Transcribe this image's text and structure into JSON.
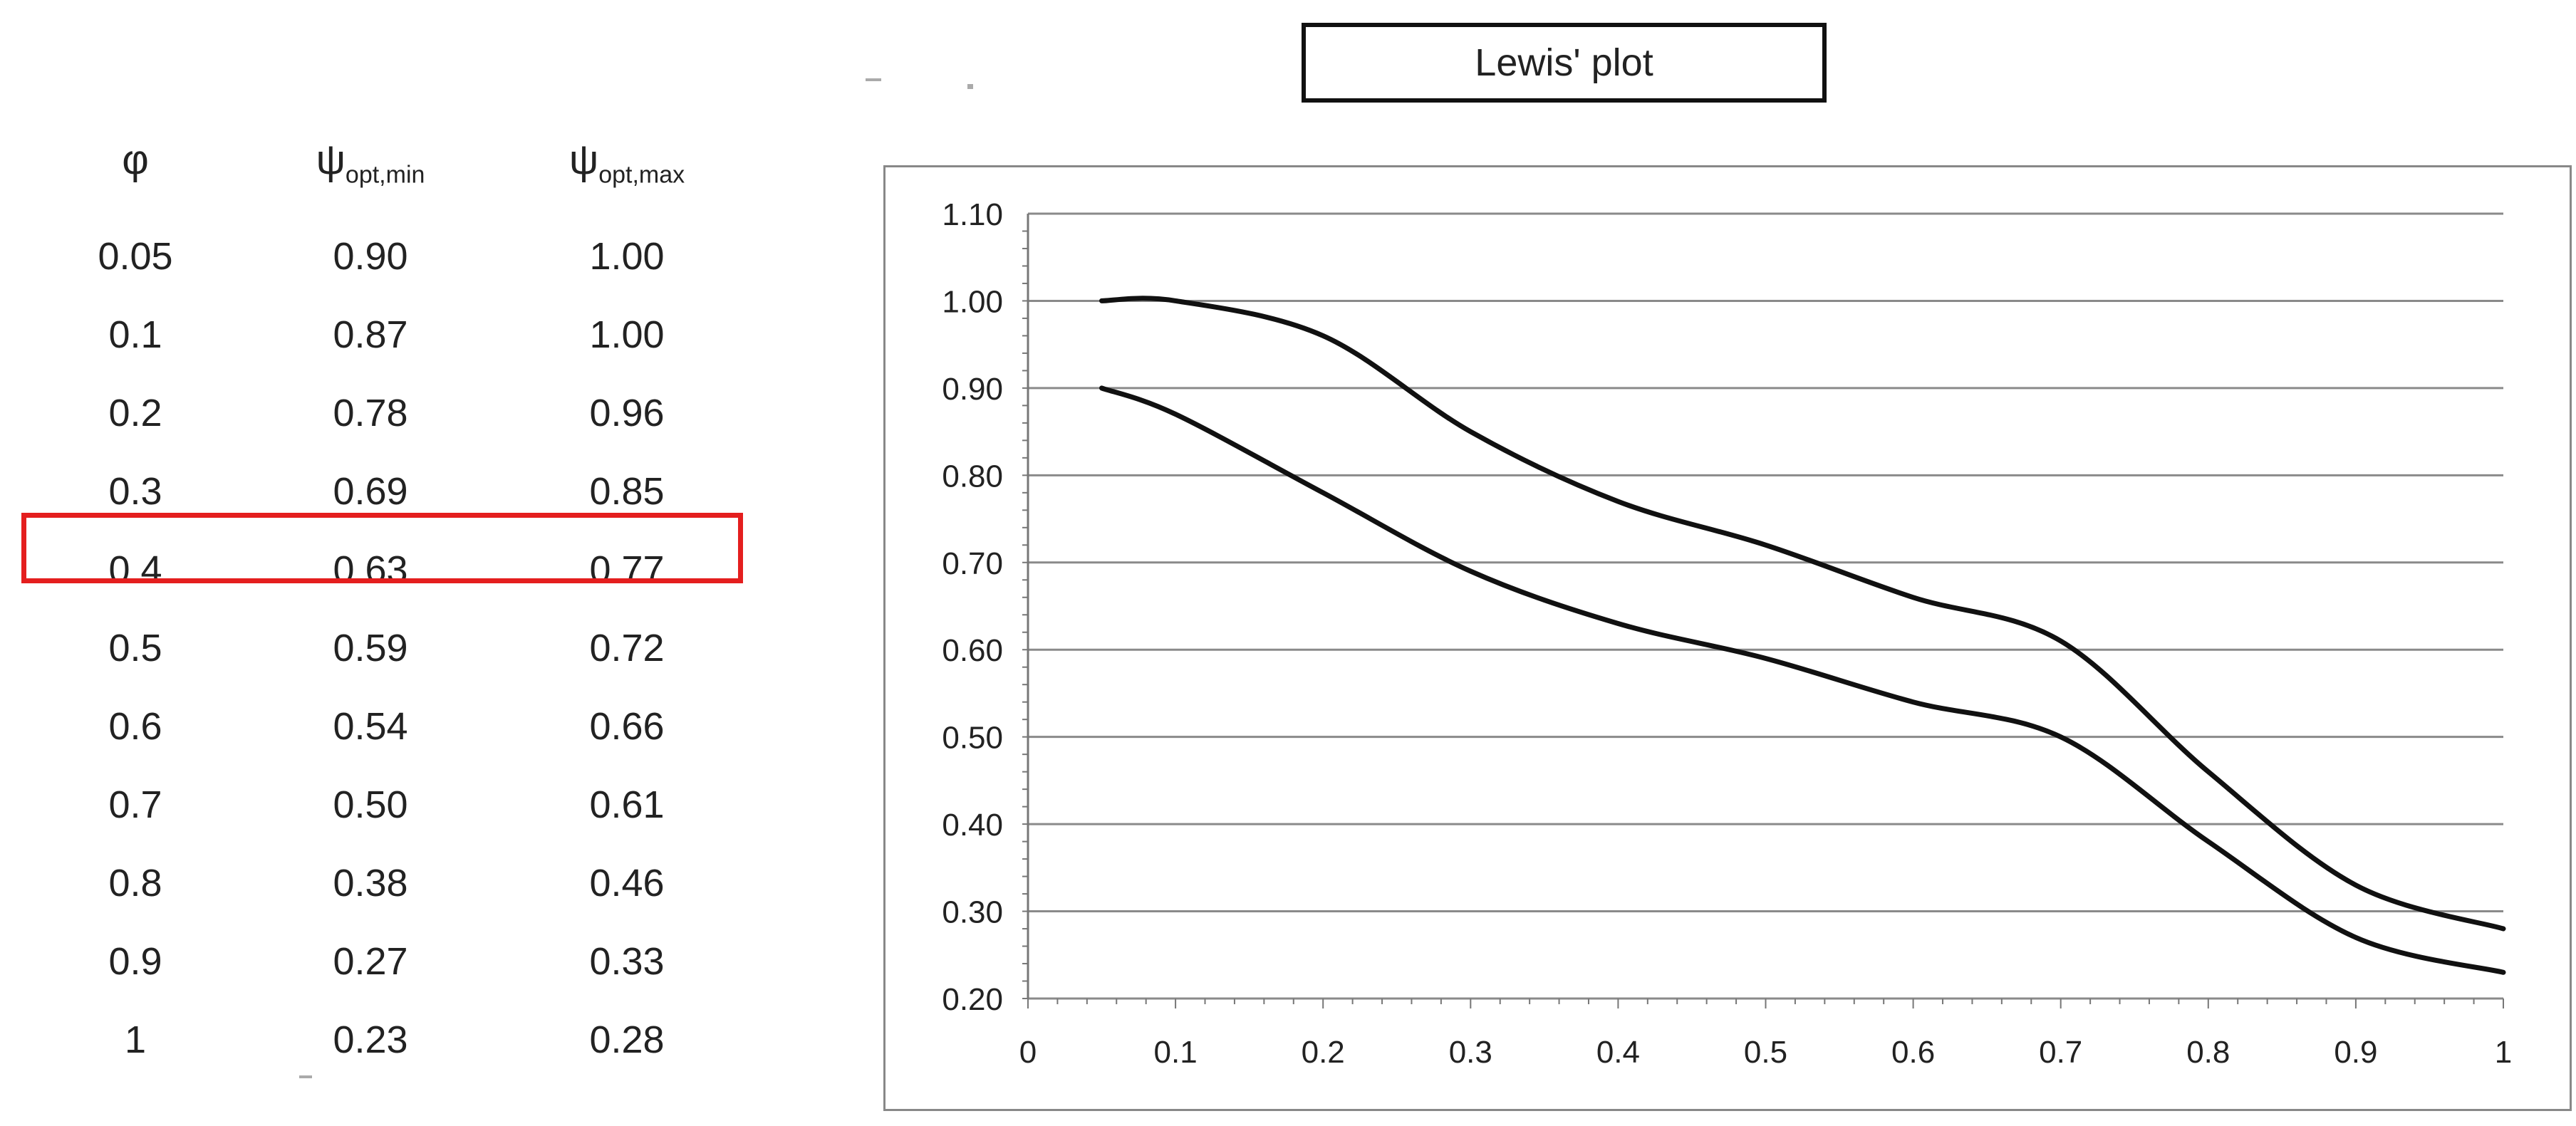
{
  "table": {
    "headers": [
      {
        "base": "φ",
        "sub": ""
      },
      {
        "base": "ψ",
        "sub": "opt,min"
      },
      {
        "base": "ψ",
        "sub": "opt,max"
      }
    ],
    "rows": [
      [
        "0.05",
        "0.90",
        "1.00"
      ],
      [
        "0.1",
        "0.87",
        "1.00"
      ],
      [
        "0.2",
        "0.78",
        "0.96"
      ],
      [
        "0.3",
        "0.69",
        "0.85"
      ],
      [
        "0.4",
        "0.63",
        "0.77"
      ],
      [
        "0.5",
        "0.59",
        "0.72"
      ],
      [
        "0.6",
        "0.54",
        "0.66"
      ],
      [
        "0.7",
        "0.50",
        "0.61"
      ],
      [
        "0.8",
        "0.38",
        "0.46"
      ],
      [
        "0.9",
        "0.27",
        "0.33"
      ],
      [
        "1",
        "0.23",
        "0.28"
      ]
    ],
    "highlighted_row": 4,
    "highlight_color": "#e41e1e"
  },
  "chart_data": {
    "type": "line",
    "title": "Lewis' plot",
    "xlabel": "",
    "ylabel": "",
    "xlim": [
      0,
      1
    ],
    "ylim": [
      0.2,
      1.1
    ],
    "x_ticks": [
      "0",
      "0.1",
      "0.2",
      "0.3",
      "0.4",
      "0.5",
      "0.6",
      "0.7",
      "0.8",
      "0.9",
      "1"
    ],
    "y_ticks": [
      "0.20",
      "0.30",
      "0.40",
      "0.50",
      "0.60",
      "0.70",
      "0.80",
      "0.90",
      "1.00",
      "1.10"
    ],
    "grid": "horizontal",
    "legend": "none",
    "line_color": "#111111",
    "series": [
      {
        "x": [
          0.05,
          0.1,
          0.2,
          0.3,
          0.4,
          0.5,
          0.6,
          0.7,
          0.8,
          0.9,
          1.0
        ],
        "values": [
          0.9,
          0.87,
          0.78,
          0.69,
          0.63,
          0.59,
          0.54,
          0.5,
          0.38,
          0.27,
          0.23
        ]
      },
      {
        "x": [
          0.05,
          0.1,
          0.2,
          0.3,
          0.4,
          0.5,
          0.6,
          0.7,
          0.8,
          0.9,
          1.0
        ],
        "values": [
          1.0,
          1.0,
          0.96,
          0.85,
          0.77,
          0.72,
          0.66,
          0.61,
          0.46,
          0.33,
          0.28
        ]
      }
    ]
  }
}
